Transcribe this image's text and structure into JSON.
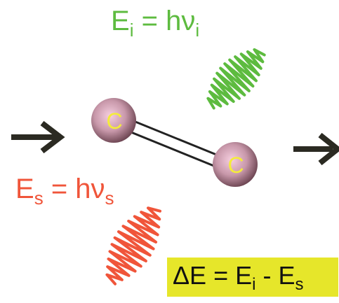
{
  "colors": {
    "incident": "#5dbb3f",
    "scattered": "#f0553a",
    "delta_box": "#e6e62a",
    "atom": "#b58a97",
    "atom_label": "#f4ec3a",
    "arrow": "#2b2a22",
    "bond": "#222222"
  },
  "incident": {
    "energy_symbol": "E",
    "energy_sub": "i",
    "equals": "=",
    "h": "h",
    "nu": "ν",
    "nu_sub": "i"
  },
  "scattered": {
    "energy_symbol": "E",
    "energy_sub": "s",
    "equals": "=",
    "h": "h",
    "nu": "ν",
    "nu_sub": "s"
  },
  "delta": {
    "lhs": "ΔE",
    "equals": "=",
    "e1": "E",
    "e1_sub": "i",
    "minus": "-",
    "e2": "E",
    "e2_sub": "s"
  },
  "molecule": {
    "atom_1_label": "C",
    "atom_2_label": "C",
    "bond_type": "double"
  },
  "icons": {
    "input_arrow": "right-arrow-icon",
    "output_arrow": "right-arrow-icon",
    "incident_wave": "wave-packet-icon",
    "scattered_wave": "wave-packet-icon"
  }
}
